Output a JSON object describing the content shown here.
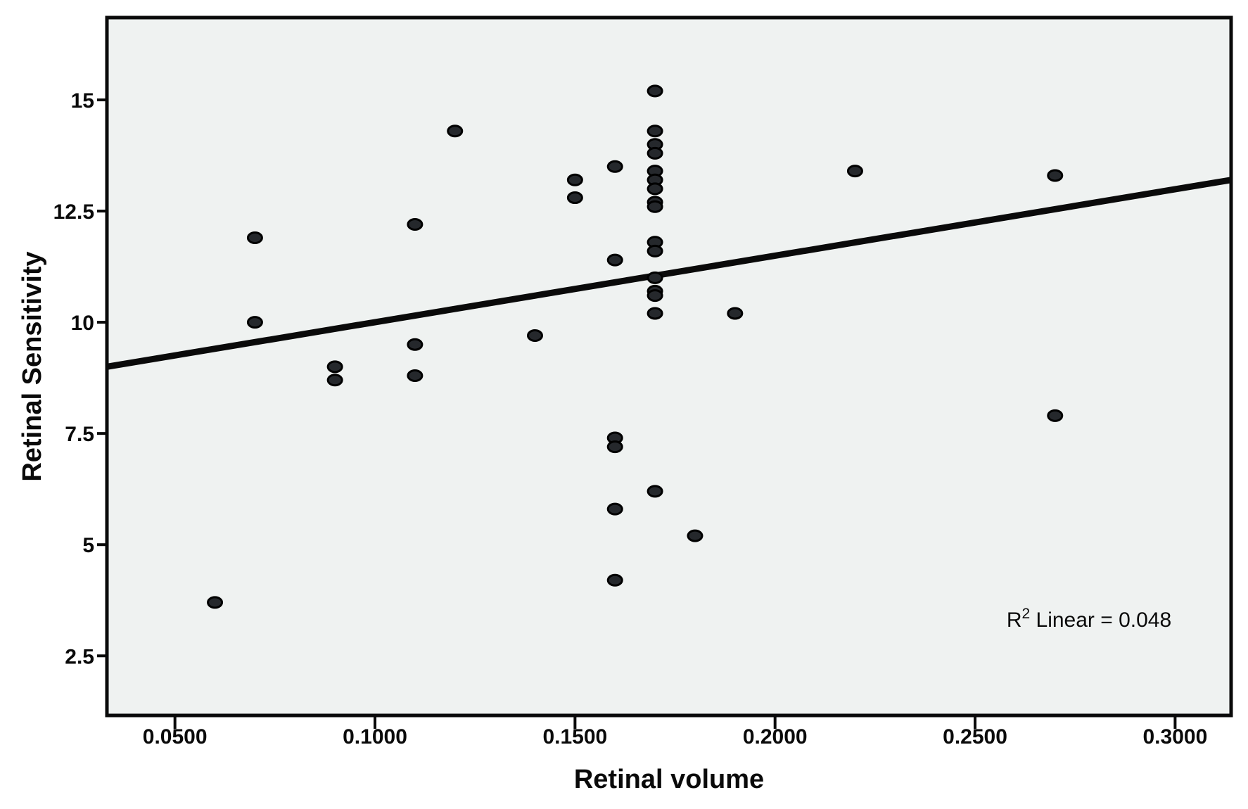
{
  "figure": {
    "background_color": "#ffffff",
    "plot_background_color": "#eff2f1",
    "frame_color": "#0a0a0a",
    "marker_fill": "#25282c",
    "marker_stroke": "#000000",
    "annotation": {
      "base": "R",
      "sup": "2",
      "rest": " Linear = 0.048"
    }
  },
  "chart_data": {
    "type": "scatter",
    "title": "",
    "xlabel": "Retinal volume",
    "ylabel": "Retinal Sensitivity",
    "legend": null,
    "grid": false,
    "xlim": [
      0.033,
      0.314
    ],
    "ylim": [
      1.16,
      16.85
    ],
    "x_ticks": [
      {
        "v": 0.05,
        "label": "0.0500"
      },
      {
        "v": 0.1,
        "label": "0.1000"
      },
      {
        "v": 0.15,
        "label": "0.1500"
      },
      {
        "v": 0.2,
        "label": "0.2000"
      },
      {
        "v": 0.25,
        "label": "0.2500"
      },
      {
        "v": 0.3,
        "label": "0.3000"
      }
    ],
    "y_ticks": [
      {
        "v": 2.5,
        "label": "2.5"
      },
      {
        "v": 5,
        "label": "5"
      },
      {
        "v": 7.5,
        "label": "7.5"
      },
      {
        "v": 10,
        "label": "10"
      },
      {
        "v": 12.5,
        "label": "12.5"
      },
      {
        "v": 15,
        "label": "15"
      }
    ],
    "points": [
      [
        0.06,
        3.7
      ],
      [
        0.07,
        11.9
      ],
      [
        0.07,
        10.0
      ],
      [
        0.09,
        9.0
      ],
      [
        0.09,
        8.7
      ],
      [
        0.11,
        12.2
      ],
      [
        0.11,
        9.5
      ],
      [
        0.11,
        8.8
      ],
      [
        0.12,
        14.3
      ],
      [
        0.14,
        9.7
      ],
      [
        0.15,
        13.2
      ],
      [
        0.15,
        12.8
      ],
      [
        0.16,
        13.5
      ],
      [
        0.16,
        11.4
      ],
      [
        0.16,
        7.4
      ],
      [
        0.16,
        7.2
      ],
      [
        0.16,
        5.8
      ],
      [
        0.16,
        4.2
      ],
      [
        0.17,
        15.2
      ],
      [
        0.17,
        14.3
      ],
      [
        0.17,
        14.0
      ],
      [
        0.17,
        13.8
      ],
      [
        0.17,
        13.4
      ],
      [
        0.17,
        13.2
      ],
      [
        0.17,
        13.0
      ],
      [
        0.17,
        12.7
      ],
      [
        0.17,
        12.6
      ],
      [
        0.17,
        11.8
      ],
      [
        0.17,
        11.6
      ],
      [
        0.17,
        11.0
      ],
      [
        0.17,
        10.7
      ],
      [
        0.17,
        10.6
      ],
      [
        0.17,
        10.2
      ],
      [
        0.17,
        6.2
      ],
      [
        0.18,
        5.2
      ],
      [
        0.19,
        10.2
      ],
      [
        0.22,
        13.4
      ],
      [
        0.27,
        13.3
      ],
      [
        0.27,
        7.9
      ]
    ],
    "regression_line": {
      "x1": 0.033,
      "y1": 9.0,
      "x2": 0.314,
      "y2": 13.2,
      "r2": 0.048,
      "r2_label": "R2 Linear = 0.048"
    }
  }
}
